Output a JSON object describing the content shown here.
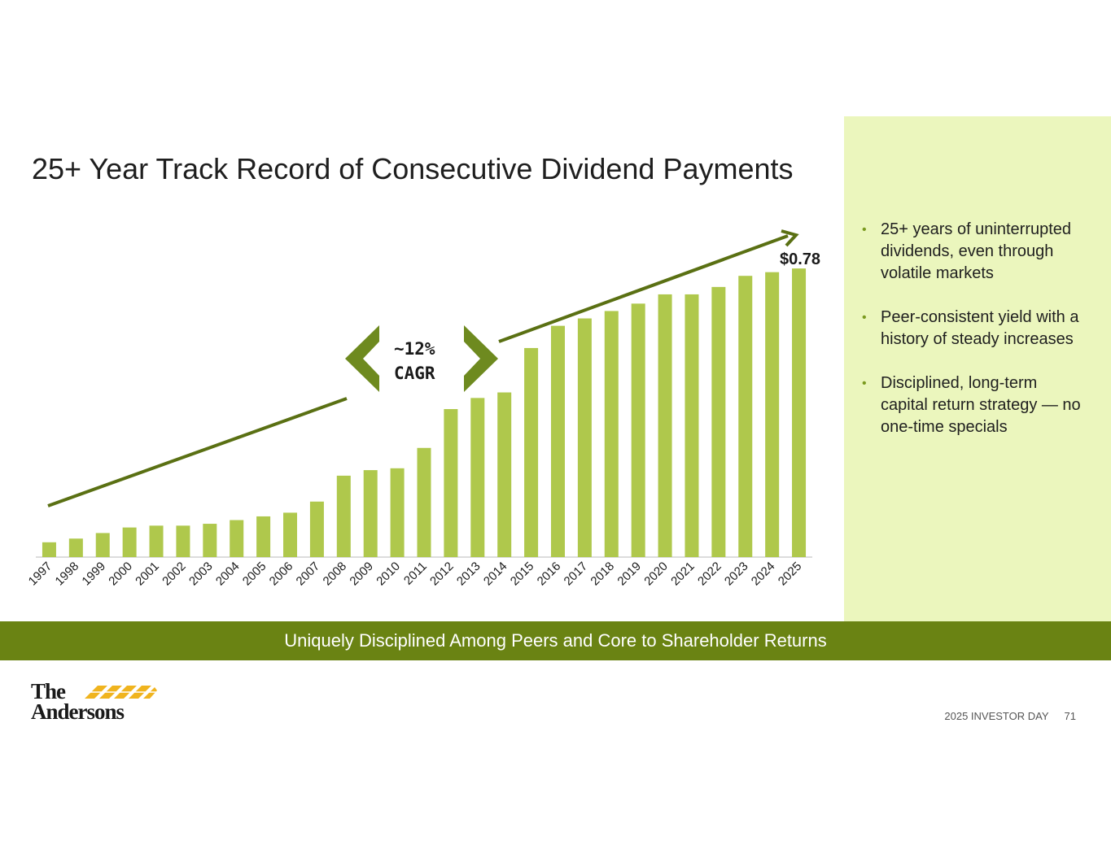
{
  "title": "25+ Year Track Record of Consecutive Dividend Payments",
  "chart_data": {
    "type": "bar",
    "categories": [
      "1997",
      "1998",
      "1999",
      "2000",
      "2001",
      "2002",
      "2003",
      "2004",
      "2005",
      "2006",
      "2007",
      "2008",
      "2009",
      "2010",
      "2011",
      "2012",
      "2013",
      "2014",
      "2015",
      "2016",
      "2017",
      "2018",
      "2019",
      "2020",
      "2021",
      "2022",
      "2023",
      "2024",
      "2025"
    ],
    "values": [
      0.04,
      0.05,
      0.065,
      0.08,
      0.085,
      0.085,
      0.09,
      0.1,
      0.11,
      0.12,
      0.15,
      0.22,
      0.235,
      0.24,
      0.295,
      0.4,
      0.43,
      0.445,
      0.565,
      0.625,
      0.645,
      0.665,
      0.685,
      0.71,
      0.71,
      0.73,
      0.76,
      0.77,
      0.78
    ],
    "ylim": [
      0,
      0.8
    ],
    "end_label": "$0.78",
    "annotation": {
      "line1": "~12%",
      "line2": "CAGR"
    },
    "bar_color": "#afc84c",
    "trend_color": "#5a7013",
    "arrow_color": "#6e8a1f",
    "grid": false,
    "legend": "none"
  },
  "bullets": [
    "25+ years of uninterrupted dividends, even through volatile markets",
    "Peer-consistent yield with a history of steady increases",
    "Disciplined, long-term capital return strategy — no one-time specials"
  ],
  "footer_band": "Uniquely Disciplined Among Peers and Core to Shareholder Returns",
  "logo": {
    "line1": "The",
    "line2": "Andersons",
    "mark_color": "#f0b41e"
  },
  "footer": {
    "event": "2025 INVESTOR DAY",
    "page": "71"
  }
}
